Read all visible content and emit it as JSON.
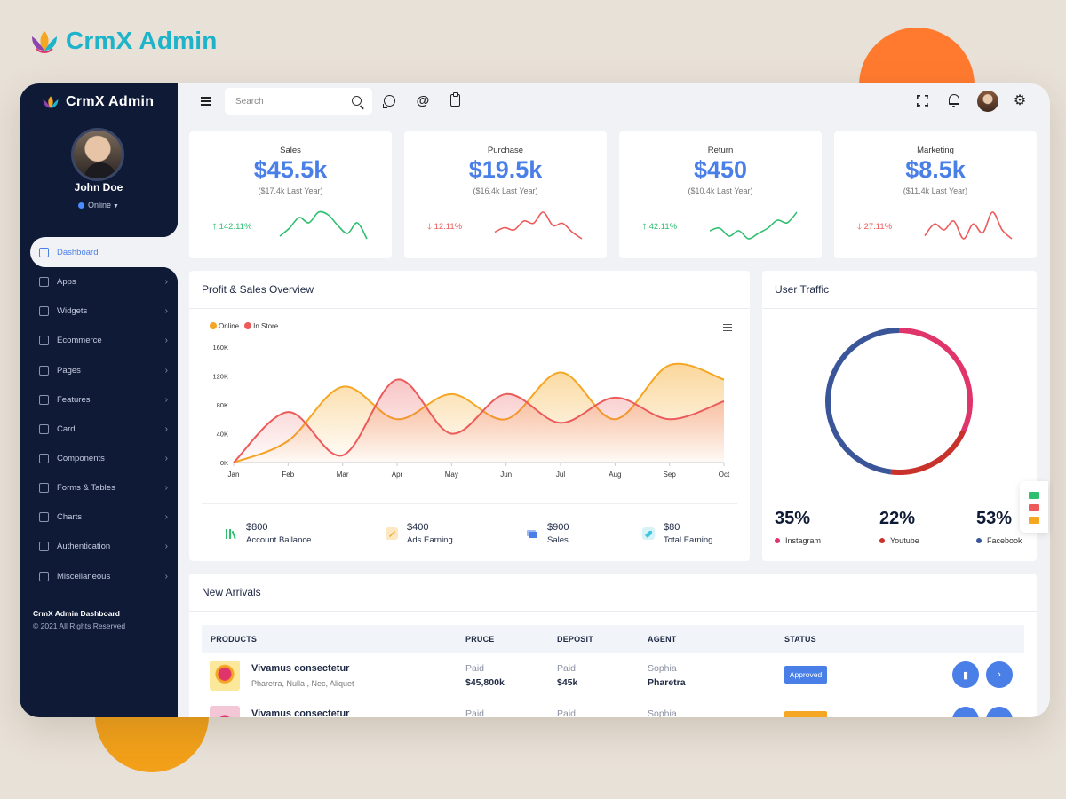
{
  "brand": {
    "name": "CrmX Admin"
  },
  "sidebar": {
    "brand": "CrmX Admin",
    "user": {
      "name": "John Doe",
      "status": "Online"
    },
    "items": [
      {
        "label": "Dashboard",
        "icon": "monitor-icon"
      },
      {
        "label": "Apps",
        "icon": "grid-icon"
      },
      {
        "label": "Widgets",
        "icon": "edit-icon"
      },
      {
        "label": "Ecommerce",
        "icon": "cart-icon"
      },
      {
        "label": "Pages",
        "icon": "cast-icon"
      },
      {
        "label": "Features",
        "icon": "box-icon"
      },
      {
        "label": "Card",
        "icon": "credit-card-icon"
      },
      {
        "label": "Components",
        "icon": "eye-icon"
      },
      {
        "label": "Forms & Tables",
        "icon": "inbox-icon"
      },
      {
        "label": "Charts",
        "icon": "pie-chart-icon"
      },
      {
        "label": "Authentication",
        "icon": "lock-icon"
      },
      {
        "label": "Miscellaneous",
        "icon": "alert-triangle-icon"
      }
    ],
    "footer": {
      "title": "CrmX Admin Dashboard",
      "copyright": "© 2021 All Rights Reserved"
    }
  },
  "header": {
    "search_placeholder": "Search"
  },
  "stats": [
    {
      "title": "Sales",
      "value": "$45.5k",
      "last": "($17.4k Last Year)",
      "change": "142.11%",
      "direction": "up",
      "color": "#2fbf71",
      "spark": [
        20,
        26,
        34,
        30,
        38,
        36,
        28,
        22,
        30,
        18
      ]
    },
    {
      "title": "Purchase",
      "value": "$19.5k",
      "last": "($16.4k Last Year)",
      "change": "12.11%",
      "direction": "down",
      "color": "#ec5a5a",
      "spark": [
        18,
        22,
        20,
        28,
        26,
        36,
        24,
        26,
        18,
        12
      ]
    },
    {
      "title": "Return",
      "value": "$450",
      "last": "($10.4k Last Year)",
      "change": "42.11%",
      "direction": "up",
      "color": "#2fbf71",
      "spark": [
        22,
        24,
        18,
        22,
        16,
        20,
        24,
        30,
        28,
        36
      ]
    },
    {
      "title": "Marketing",
      "value": "$8.5k",
      "last": "($11.4k Last Year)",
      "change": "27.11%",
      "direction": "down",
      "color": "#ec5a5a",
      "spark": [
        18,
        26,
        22,
        28,
        16,
        26,
        20,
        34,
        22,
        16
      ]
    }
  ],
  "overview": {
    "title": "Profit & Sales Overview",
    "summary": [
      {
        "value": "$800",
        "label": "Account Ballance",
        "color": "#2fbf71"
      },
      {
        "value": "$400",
        "label": "Ads Earning",
        "color": "#f5a623"
      },
      {
        "value": "$900",
        "label": "Sales",
        "color": "#4a7fe8"
      },
      {
        "value": "$80",
        "label": "Total Earning",
        "color": "#3fc6e0"
      }
    ]
  },
  "chart_data": {
    "type": "area",
    "categories": [
      "Jan",
      "Feb",
      "Mar",
      "Apr",
      "May",
      "Jun",
      "Jul",
      "Aug",
      "Sep",
      "Oct"
    ],
    "series": [
      {
        "name": "Online",
        "color": "#f5a623",
        "values": [
          0,
          30,
          105,
          60,
          95,
          60,
          125,
          60,
          135,
          115
        ]
      },
      {
        "name": "In Store",
        "color": "#ec5a5a",
        "values": [
          0,
          70,
          10,
          115,
          40,
          95,
          55,
          90,
          60,
          85
        ]
      }
    ],
    "yticks": [
      "0K",
      "40K",
      "80K",
      "120K",
      "160K"
    ],
    "ylim": [
      0,
      160
    ],
    "legend": "top-left",
    "grid": false
  },
  "traffic": {
    "title": "User Traffic",
    "segments": [
      {
        "label": "Instagram",
        "value": "35%",
        "color": "#e0356b"
      },
      {
        "label": "Youtube",
        "value": "22%",
        "color": "#c9312b"
      },
      {
        "label": "Facebook",
        "value": "53%",
        "color": "#3a5699"
      }
    ]
  },
  "arrivals": {
    "title": "New Arrivals",
    "columns": [
      "PRODUCTS",
      "PRUCE",
      "DEPOSIT",
      "AGENT",
      "STATUS"
    ],
    "rows": [
      {
        "name": "Vivamus consectetur",
        "sub": "Pharetra, Nulla , Nec, Aliquet",
        "price_label": "Paid",
        "price": "$45,800k",
        "deposit_label": "Paid",
        "deposit": "$45k",
        "agent": "Sophia",
        "agent_sub": "Pharetra",
        "status": "Approved",
        "status_color": "#4a7fe8"
      },
      {
        "name": "Vivamus consectetur",
        "sub": "",
        "price_label": "Paid",
        "price": "",
        "deposit_label": "Paid",
        "deposit": "",
        "agent": "Sophia",
        "agent_sub": "",
        "status": "",
        "status_color": "#f5a623"
      }
    ]
  }
}
